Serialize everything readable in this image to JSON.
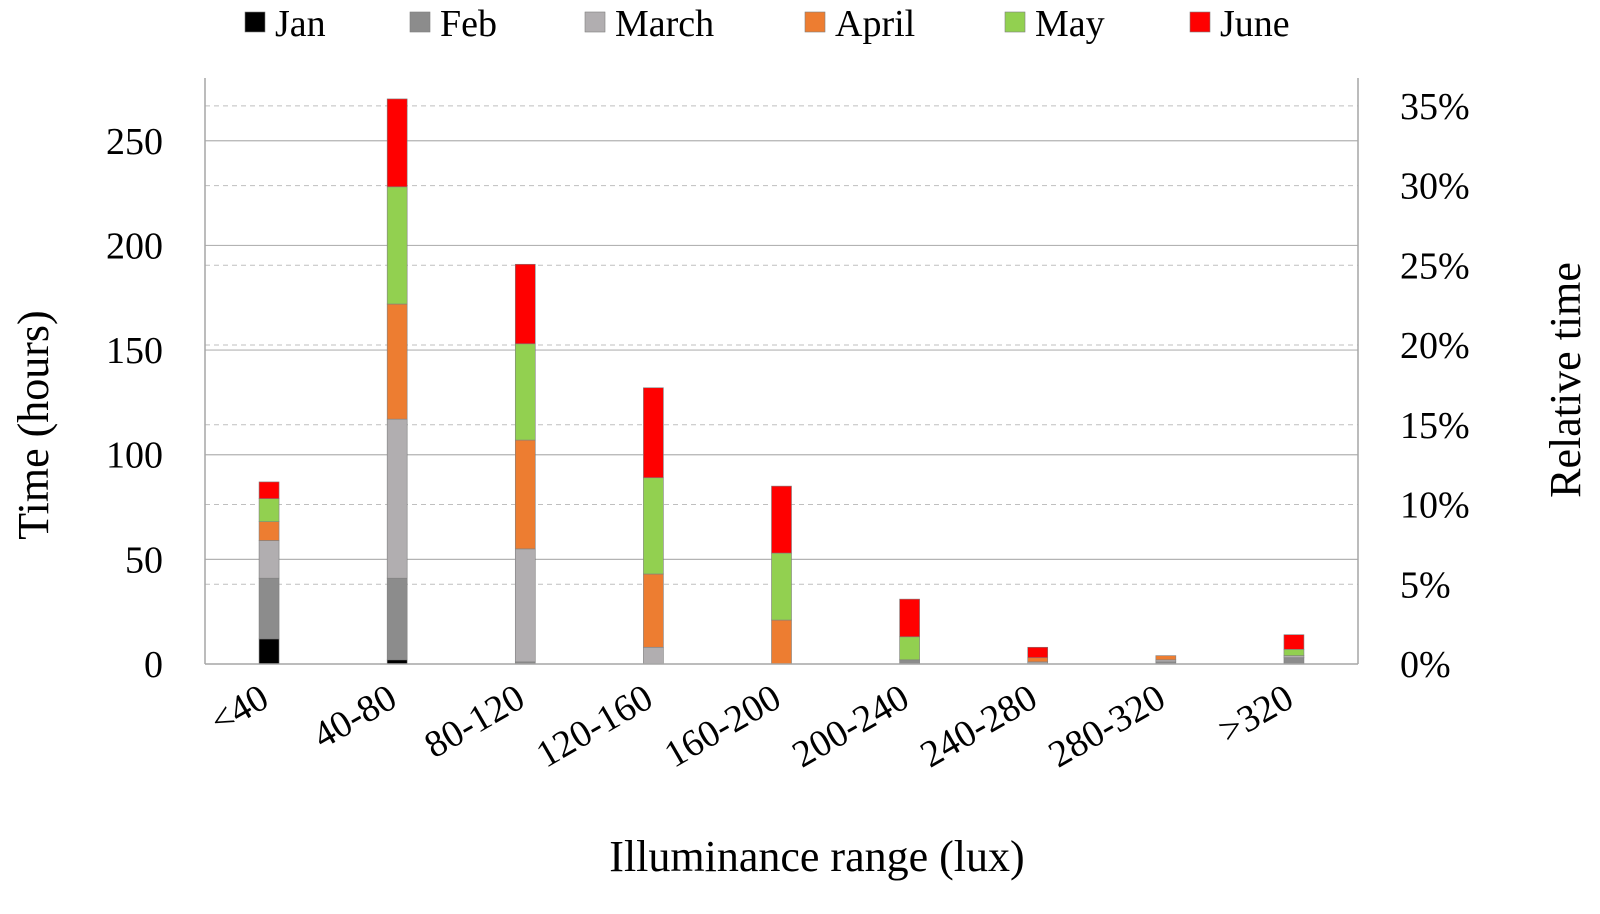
{
  "chart_data": {
    "type": "bar",
    "stacked": true,
    "title": "",
    "xlabel": "Illuminance range (lux)",
    "ylabel": "Time (hours)",
    "y2label": "Relative time",
    "ylim": [
      0,
      280
    ],
    "y_ticks": [
      0,
      50,
      100,
      150,
      200,
      250
    ],
    "y2_ticks": [
      "0%",
      "5%",
      "10%",
      "15%",
      "20%",
      "25%",
      "30%",
      "35%"
    ],
    "y2_tick_values": [
      0,
      5,
      10,
      15,
      20,
      25,
      30,
      35
    ],
    "y2_hours_per_percent": 7.62,
    "categories": [
      "<40",
      "40-80",
      "80-120",
      "120-160",
      "160-200",
      "200-240",
      "240-280",
      "280-320",
      ">320"
    ],
    "series": [
      {
        "name": "Jan",
        "color": "#000000",
        "values": [
          12,
          2,
          0,
          0,
          0,
          0,
          0,
          0,
          0
        ]
      },
      {
        "name": "Feb",
        "color": "#8c8c8c",
        "values": [
          29,
          39,
          1,
          0,
          0,
          2,
          0,
          1,
          3
        ]
      },
      {
        "name": "March",
        "color": "#b1aeb0",
        "values": [
          18,
          76,
          54,
          8,
          0,
          0,
          1,
          1,
          1
        ]
      },
      {
        "name": "April",
        "color": "#ed7d31",
        "values": [
          9,
          55,
          52,
          35,
          21,
          0,
          2,
          2,
          0
        ]
      },
      {
        "name": "May",
        "color": "#92d050",
        "values": [
          11,
          56,
          46,
          46,
          32,
          11,
          0,
          0,
          3
        ]
      },
      {
        "name": "June",
        "color": "#ff0000",
        "values": [
          8,
          42,
          38,
          43,
          32,
          18,
          5,
          0,
          7
        ]
      }
    ],
    "grid": {
      "major": true,
      "secondary_dashed": true
    },
    "legend_position": "top"
  }
}
